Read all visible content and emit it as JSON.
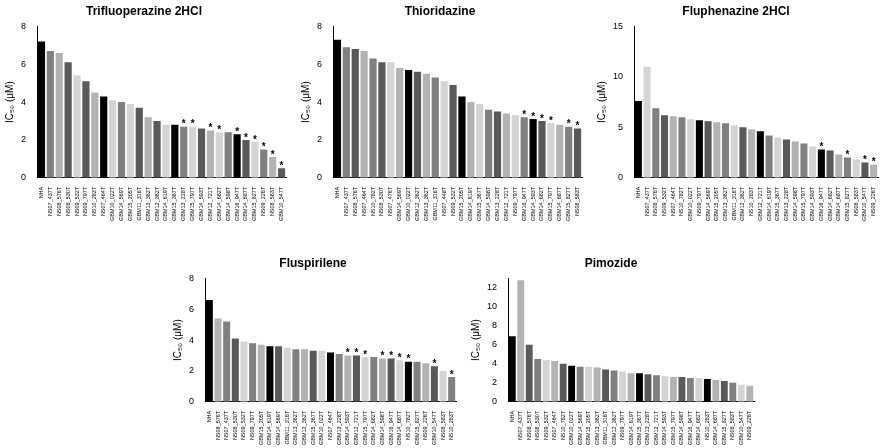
{
  "chart_data": [
    {
      "type": "bar",
      "title": "Trifluoperazine 2HCl",
      "y_label": "IC₅₀ (μM)",
      "categories": [
        "NHA",
        "NS07_437T",
        "NS08_576T",
        "NS08_530T",
        "NS09_532T",
        "NS09_797T",
        "NS10_283T",
        "NS07_464T",
        "GBM10_022T",
        "GBM14_569T",
        "GBM15_205T",
        "GBM11_316T",
        "GBM13_362T",
        "GBM12_362T",
        "GBM14_619T",
        "GBM15_367T",
        "GBM13_228T",
        "GBM15_797T",
        "GBM14_593T",
        "GBM12_721T",
        "GBM14_682T",
        "GBM14_598T",
        "GBM16_947T",
        "GBM14_687T",
        "GBM15_827T",
        "NS09_226T",
        "NS08_583T",
        "GBM10_547T"
      ],
      "values": [
        7.2,
        6.7,
        6.6,
        6.1,
        5.4,
        5.1,
        4.5,
        4.3,
        4.1,
        4.0,
        3.9,
        3.7,
        3.2,
        3.0,
        2.8,
        2.8,
        2.7,
        2.7,
        2.6,
        2.5,
        2.4,
        2.4,
        2.3,
        2.0,
        1.9,
        1.5,
        1.1,
        0.5
      ],
      "colors": [
        "#000000",
        "#808080",
        "#b3b3b3",
        "#595959",
        "#d4d4d4",
        "#595959",
        "#b3b3b3",
        "#000000",
        "#d4d4d4",
        "#808080",
        "#d4d4d4",
        "#595959",
        "#b3b3b3",
        "#595959",
        "#d4d4d4",
        "#000000",
        "#808080",
        "#d4d4d4",
        "#595959",
        "#b3b3b3",
        "#d4d4d4",
        "#808080",
        "#000000",
        "#595959",
        "#d4d4d4",
        "#808080",
        "#b3b3b3",
        "#595959"
      ],
      "annotations": [
        {
          "category": "GBM13_228T",
          "text": "*"
        },
        {
          "category": "GBM15_797T",
          "text": "*"
        },
        {
          "category": "GBM12_721T",
          "text": "*"
        },
        {
          "category": "GBM14_682T",
          "text": "*"
        },
        {
          "category": "GBM16_947T",
          "text": "*"
        },
        {
          "category": "GBM14_687T",
          "text": "*"
        },
        {
          "category": "GBM15_827T",
          "text": "*"
        },
        {
          "category": "NS09_226T",
          "text": "*"
        },
        {
          "category": "NS08_583T",
          "text": "*"
        },
        {
          "category": "GBM10_547T",
          "text": "*"
        }
      ],
      "ylim": [
        0,
        8
      ],
      "yticks": [
        0,
        2,
        4,
        6,
        8
      ],
      "grid": false
    },
    {
      "type": "bar",
      "title": "Thioridazine",
      "y_label": "IC₅₀ (μM)",
      "categories": [
        "NHA",
        "NS07_437T",
        "NS08_576T",
        "NS07_464T",
        "NS10_782T",
        "NS08_530T",
        "NS07_476T",
        "GBM14_569T",
        "GBM10_022T",
        "GBM12_362T",
        "GBM13_362T",
        "GBM11_316T",
        "NS07_448T",
        "NS09_532T",
        "GBM15_205T",
        "GBM14_619T",
        "GBM15_367T",
        "GBM14_598T",
        "GBM13_228T",
        "GBM12_721T",
        "NS09_797T",
        "GBM16_947T",
        "GBM14_593T",
        "GBM14_682T",
        "GBM15_797T",
        "GBM14_687T",
        "GBM15_827T",
        "NS08_583T"
      ],
      "values": [
        7.3,
        6.9,
        6.8,
        6.7,
        6.3,
        6.1,
        6.1,
        5.8,
        5.7,
        5.6,
        5.5,
        5.3,
        5.1,
        4.9,
        4.3,
        4.0,
        3.9,
        3.6,
        3.5,
        3.4,
        3.3,
        3.2,
        3.1,
        3.0,
        2.9,
        2.8,
        2.7,
        2.6
      ],
      "colors": [
        "#000000",
        "#808080",
        "#595959",
        "#b3b3b3",
        "#808080",
        "#595959",
        "#d4d4d4",
        "#b3b3b3",
        "#000000",
        "#595959",
        "#b3b3b3",
        "#808080",
        "#d4d4d4",
        "#595959",
        "#000000",
        "#b3b3b3",
        "#d4d4d4",
        "#808080",
        "#595959",
        "#b3b3b3",
        "#d4d4d4",
        "#808080",
        "#000000",
        "#595959",
        "#d4d4d4",
        "#b3b3b3",
        "#808080",
        "#595959"
      ],
      "annotations": [
        {
          "category": "GBM16_947T",
          "text": "*"
        },
        {
          "category": "GBM14_593T",
          "text": "*"
        },
        {
          "category": "GBM14_682T",
          "text": "*"
        },
        {
          "category": "GBM15_797T",
          "text": "*"
        },
        {
          "category": "GBM15_827T",
          "text": "*"
        },
        {
          "category": "NS08_583T",
          "text": "*"
        }
      ],
      "ylim": [
        0,
        8
      ],
      "yticks": [
        0,
        2,
        4,
        6,
        8
      ],
      "grid": false
    },
    {
      "type": "bar",
      "title": "Fluphenazine 2HCl",
      "y_label": "IC₅₀ (μM)",
      "categories": [
        "NHA",
        "NS07_437T",
        "NS08_576T",
        "NS09_532T",
        "NS07_464T",
        "NS10_782T",
        "GBM10_022T",
        "NS09_797T",
        "GBM14_569T",
        "GBM15_205T",
        "GBM13_362T",
        "GBM11_316T",
        "GBM12_362T",
        "NS10_283T",
        "GBM12_721T",
        "GBM14_619T",
        "GBM15_367T",
        "GBM13_228T",
        "GBM14_598T",
        "GBM15_797T",
        "GBM14_593T",
        "GBM16_947T",
        "GBM14_682T",
        "GBM14_687T",
        "GBM15_827T",
        "NS08_583T",
        "GBM10_547T",
        "NS09_226T"
      ],
      "values": [
        7.6,
        11.0,
        6.9,
        6.2,
        6.1,
        6.0,
        5.8,
        5.7,
        5.6,
        5.5,
        5.4,
        5.2,
        5.0,
        4.8,
        4.6,
        4.2,
        4.0,
        3.8,
        3.6,
        3.4,
        3.1,
        2.8,
        2.7,
        2.3,
        2.0,
        1.8,
        1.5,
        1.3
      ],
      "colors": [
        "#000000",
        "#d4d4d4",
        "#808080",
        "#595959",
        "#b3b3b3",
        "#808080",
        "#d4d4d4",
        "#000000",
        "#595959",
        "#b3b3b3",
        "#808080",
        "#d4d4d4",
        "#595959",
        "#b3b3b3",
        "#000000",
        "#808080",
        "#d4d4d4",
        "#595959",
        "#b3b3b3",
        "#808080",
        "#d4d4d4",
        "#000000",
        "#595959",
        "#b3b3b3",
        "#808080",
        "#d4d4d4",
        "#595959",
        "#b3b3b3"
      ],
      "annotations": [
        {
          "category": "GBM16_947T",
          "text": "*"
        },
        {
          "category": "GBM15_827T",
          "text": "*"
        },
        {
          "category": "GBM10_547T",
          "text": "*"
        },
        {
          "category": "NS09_226T",
          "text": "*"
        }
      ],
      "ylim": [
        0,
        15
      ],
      "yticks": [
        0,
        5,
        10,
        15
      ],
      "grid": false
    },
    {
      "type": "bar",
      "title": "Fluspirilene",
      "y_label": "IC₅₀ (μM)",
      "categories": [
        "NHA",
        "NS08_576T",
        "NS07_437T",
        "NS08_530T",
        "NS09_532T",
        "NS09_797T",
        "GBM15_205T",
        "GBM14_619T",
        "GBM14_569T",
        "GBM11_316T",
        "GBM13_362T",
        "GBM12_362T",
        "GBM15_367T",
        "GBM10_022T",
        "NS07_464T",
        "GBM13_228T",
        "GBM14_593T",
        "GBM12_721T",
        "GBM15_797T",
        "GBM14_682T",
        "GBM14_598T",
        "GBM16_947T",
        "GBM14_687T",
        "NS10_782T",
        "GBM15_827T",
        "NS09_226T",
        "GBM10_547T",
        "NS08_583T",
        "NS10_283T"
      ],
      "values": [
        6.6,
        5.4,
        5.2,
        4.1,
        3.9,
        3.8,
        3.7,
        3.6,
        3.6,
        3.5,
        3.4,
        3.4,
        3.3,
        3.3,
        3.2,
        3.1,
        3.0,
        3.0,
        2.9,
        2.9,
        2.8,
        2.8,
        2.7,
        2.6,
        2.6,
        2.5,
        2.3,
        2.0,
        1.6
      ],
      "colors": [
        "#000000",
        "#b3b3b3",
        "#808080",
        "#595959",
        "#d4d4d4",
        "#808080",
        "#b3b3b3",
        "#000000",
        "#595959",
        "#d4d4d4",
        "#808080",
        "#b3b3b3",
        "#595959",
        "#d4d4d4",
        "#000000",
        "#808080",
        "#b3b3b3",
        "#595959",
        "#d4d4d4",
        "#808080",
        "#b3b3b3",
        "#595959",
        "#d4d4d4",
        "#000000",
        "#808080",
        "#b3b3b3",
        "#595959",
        "#d4d4d4",
        "#808080"
      ],
      "annotations": [
        {
          "category": "GBM14_593T",
          "text": "*"
        },
        {
          "category": "GBM12_721T",
          "text": "*"
        },
        {
          "category": "GBM15_797T",
          "text": "*"
        },
        {
          "category": "GBM14_598T",
          "text": "*"
        },
        {
          "category": "GBM16_947T",
          "text": "*"
        },
        {
          "category": "GBM14_687T",
          "text": "*"
        },
        {
          "category": "NS10_782T",
          "text": "*"
        },
        {
          "category": "GBM10_547T",
          "text": "*"
        },
        {
          "category": "NS10_283T",
          "text": "*"
        }
      ],
      "ylim": [
        0,
        8
      ],
      "yticks": [
        0,
        2,
        4,
        6,
        8
      ],
      "grid": false
    },
    {
      "type": "bar",
      "title": "Pimozide",
      "y_label": "IC₅₀ (μM)",
      "categories": [
        "NHA",
        "NS07_437T",
        "NS08_576T",
        "NS08_530T",
        "NS09_532T",
        "NS07_464T",
        "NS10_782T",
        "GBM10_022T",
        "GBM14_569T",
        "GBM15_205T",
        "GBM13_362T",
        "GBM11_316T",
        "GBM12_362T",
        "NS09_797T",
        "GBM14_619T",
        "GBM15_367T",
        "GBM13_228T",
        "GBM12_721T",
        "GBM14_593T",
        "GBM15_797T",
        "GBM14_598T",
        "GBM16_947T",
        "GBM14_682T",
        "NS10_283T",
        "GBM14_687T",
        "GBM15_827T",
        "NS08_583T",
        "GBM10_547T",
        "NS09_226T"
      ],
      "values": [
        6.9,
        12.8,
        6.0,
        4.5,
        4.4,
        4.3,
        4.0,
        3.8,
        3.7,
        3.7,
        3.6,
        3.4,
        3.3,
        3.2,
        3.0,
        3.0,
        2.9,
        2.8,
        2.7,
        2.6,
        2.6,
        2.5,
        2.5,
        2.4,
        2.3,
        2.2,
        2.0,
        1.8,
        1.7
      ],
      "colors": [
        "#000000",
        "#b3b3b3",
        "#595959",
        "#808080",
        "#d4d4d4",
        "#b3b3b3",
        "#595959",
        "#000000",
        "#808080",
        "#d4d4d4",
        "#b3b3b3",
        "#595959",
        "#808080",
        "#d4d4d4",
        "#b3b3b3",
        "#000000",
        "#595959",
        "#808080",
        "#d4d4d4",
        "#b3b3b3",
        "#595959",
        "#808080",
        "#d4d4d4",
        "#000000",
        "#b3b3b3",
        "#595959",
        "#808080",
        "#d4d4d4",
        "#b3b3b3"
      ],
      "ylim": [
        0,
        13
      ],
      "yticks": [
        0,
        2,
        4,
        6,
        8,
        10,
        12
      ],
      "grid": false
    }
  ]
}
